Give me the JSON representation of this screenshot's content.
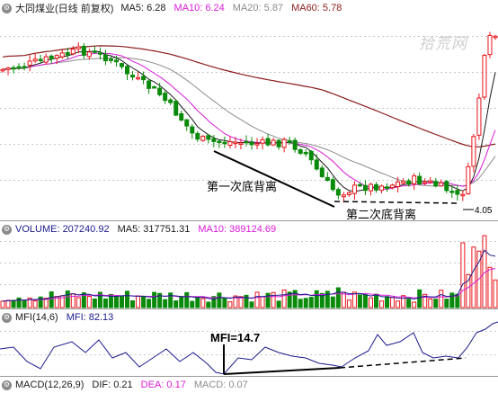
{
  "price_header": {
    "title": "大同煤业(日线 前复权)",
    "items": [
      {
        "label": "MA5: 6.28",
        "color": "#1a1a1a"
      },
      {
        "label": "MA10: 6.24",
        "color": "#d81bd8"
      },
      {
        "label": "MA20: 5.87",
        "color": "#8c8c8c"
      },
      {
        "label": "MA60: 5.78",
        "color": "#8b1a1a"
      }
    ]
  },
  "volume_header": {
    "items": [
      {
        "label": "VOLUME: 207240.92",
        "color": "#1a1a8c"
      },
      {
        "label": "MA5: 317751.31",
        "color": "#1a1a1a"
      },
      {
        "label": "MA10: 389124.69",
        "color": "#d81bd8"
      }
    ]
  },
  "mfi_header": {
    "items": [
      {
        "label": "MFI(14,6)",
        "color": "#1a1a1a"
      },
      {
        "label": "MFI: 82.13",
        "color": "#1a1a8c"
      }
    ]
  },
  "macd_header": {
    "items": [
      {
        "label": "MACD(12,26,9)",
        "color": "#1a1a1a"
      },
      {
        "label": "DIF: 0.21",
        "color": "#1a1a1a"
      },
      {
        "label": "DEA: 0.17",
        "color": "#d81bd8"
      },
      {
        "label": "MACD: 0.07",
        "color": "#8c8c8c"
      }
    ]
  },
  "watermark": "拾荒网",
  "annotations": {
    "first_divergence": "第一次底背离",
    "second_divergence": "第二次底背离",
    "low_price": "4.05",
    "mfi_value": "MFI=14.7"
  },
  "colors": {
    "up": "#e8141a",
    "down": "#0a8a0a",
    "ma5": "#1a1a1a",
    "ma10": "#d81bd8",
    "ma20": "#8c8c8c",
    "ma60": "#8b1a1a",
    "mfi": "#1a1a8c",
    "grid": "#c8c8c8"
  }
}
